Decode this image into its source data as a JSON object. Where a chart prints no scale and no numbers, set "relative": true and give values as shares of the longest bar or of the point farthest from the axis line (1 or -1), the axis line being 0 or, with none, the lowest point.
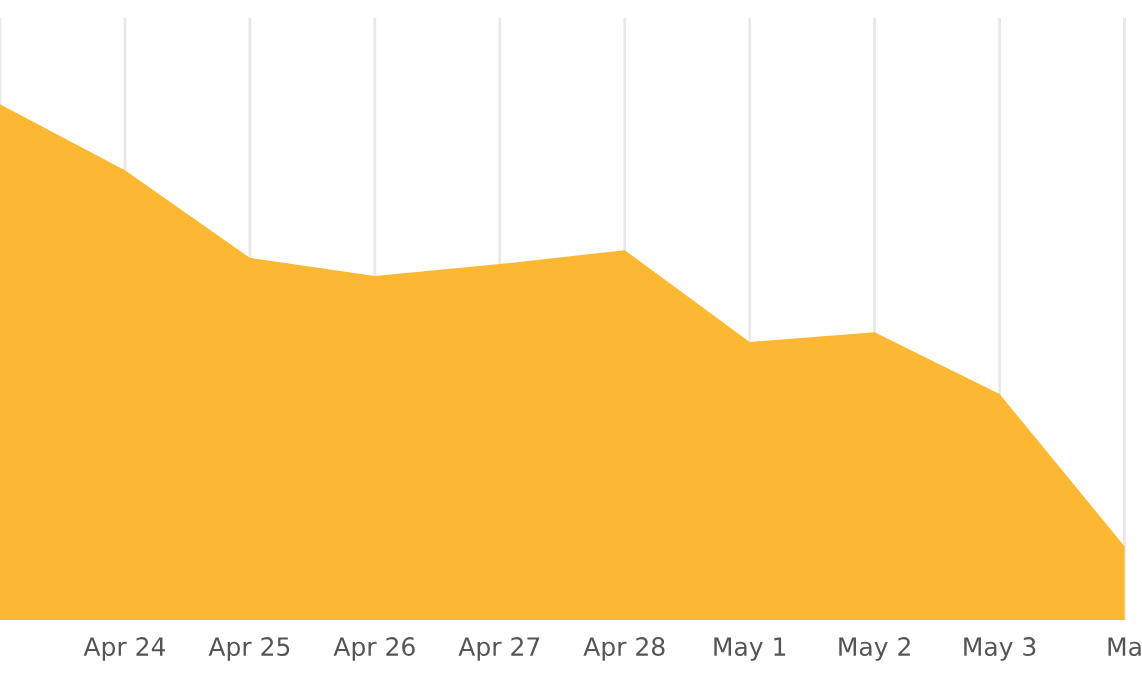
{
  "chart_data": {
    "type": "area",
    "relative": true,
    "categories": [
      null,
      "Apr 24",
      "Apr 25",
      "Apr 26",
      "Apr 27",
      "Apr 28",
      "May 1",
      "May 2",
      "May 3",
      "Ma"
    ],
    "series": [
      {
        "color": "#fcb833",
        "values": [
          1,
          0.872,
          0.702,
          0.667,
          0.69,
          0.717,
          0.539,
          0.558,
          0.438,
          0.143
        ]
      }
    ],
    "grid": "x"
  }
}
